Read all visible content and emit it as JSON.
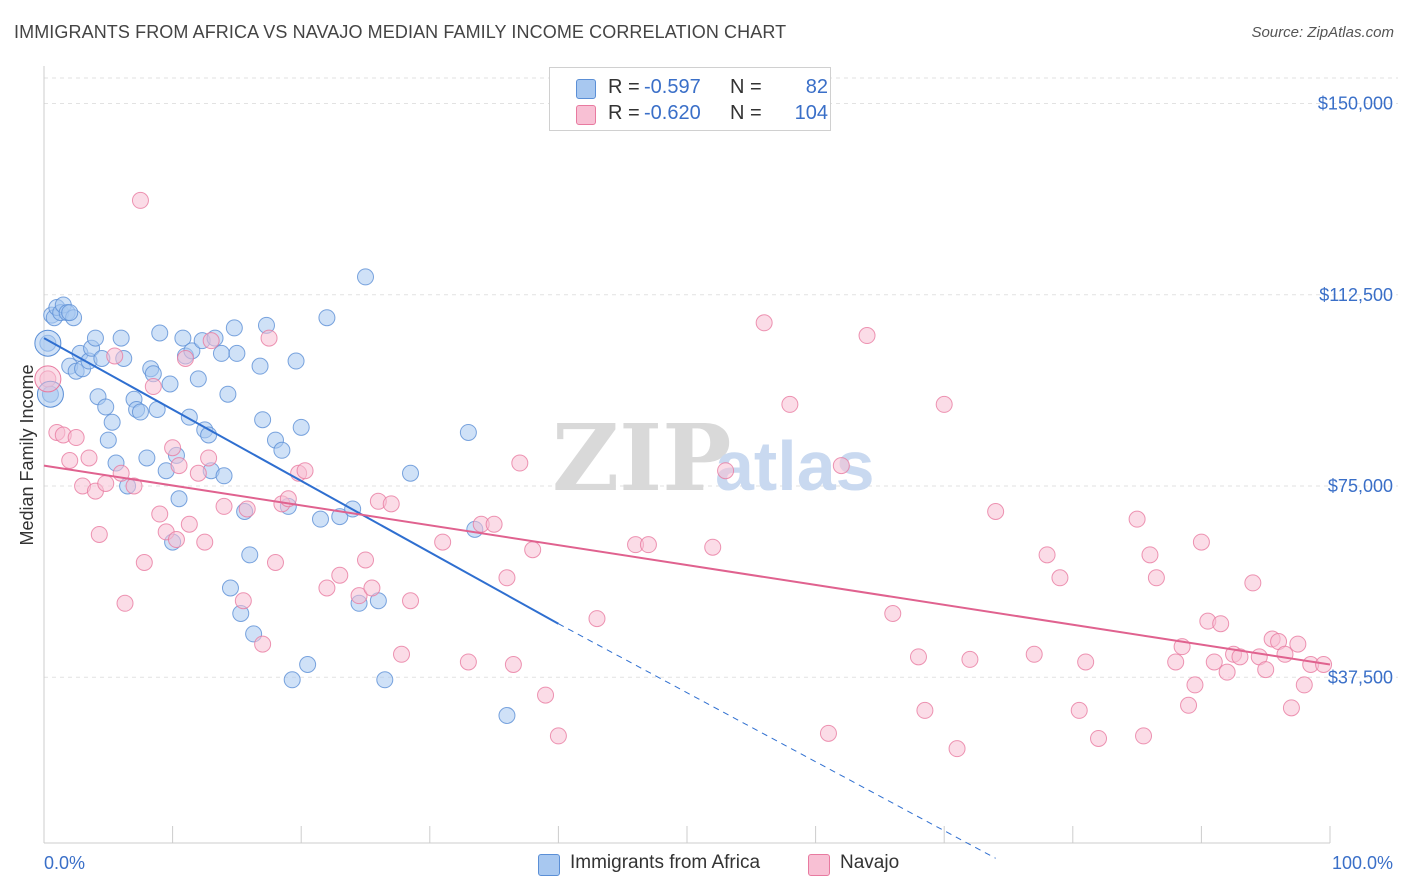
{
  "title": "IMMIGRANTS FROM AFRICA VS NAVAJO MEDIAN FAMILY INCOME CORRELATION CHART",
  "source": "Source: ZipAtlas.com",
  "watermark": {
    "zip": "ZIP",
    "atlas": "atlas"
  },
  "legend": {
    "r_label": "R =",
    "n_label": "N =",
    "rows": [
      {
        "r": "-0.597",
        "n": "82",
        "color": "#a8c8f0",
        "border": "#5b8fd6"
      },
      {
        "r": "-0.620",
        "n": "104",
        "color": "#f8c0d4",
        "border": "#e87aa0"
      }
    ]
  },
  "bottom_legend": [
    {
      "label": "Immigrants from Africa",
      "color": "#a8c8f0",
      "border": "#5b8fd6"
    },
    {
      "label": "Navajo",
      "color": "#f8c0d4",
      "border": "#e87aa0"
    }
  ],
  "chart_data": {
    "type": "scatter",
    "title": "IMMIGRANTS FROM AFRICA VS NAVAJO MEDIAN FAMILY INCOME CORRELATION CHART",
    "xlabel": "",
    "ylabel": "Median Family Income",
    "xlim": [
      0,
      100
    ],
    "ylim": [
      5000,
      155000
    ],
    "x_tick_labels": [
      "0.0%",
      "100.0%"
    ],
    "y_ticks": [
      37500,
      75000,
      112500,
      150000
    ],
    "y_tick_labels": [
      "$37,500",
      "$75,000",
      "$112,500",
      "$150,000"
    ],
    "grid": true,
    "legend_position": "top-center",
    "series": [
      {
        "name": "Immigrants from Africa",
        "color": "#5b8fd6",
        "fill": "#a8c8f0",
        "r": -0.597,
        "n": 82,
        "trend": {
          "x": [
            0,
            40
          ],
          "y": [
            104000,
            48000
          ],
          "dashed_to": [
            74,
            2000
          ]
        },
        "points": [
          [
            0.3,
            103
          ],
          [
            0.5,
            93
          ],
          [
            0.6,
            108.5
          ],
          [
            0.8,
            108
          ],
          [
            1,
            110
          ],
          [
            1.3,
            109
          ],
          [
            1.5,
            110.5
          ],
          [
            1.8,
            109
          ],
          [
            2,
            98.5
          ],
          [
            2.3,
            108
          ],
          [
            2.5,
            97.5
          ],
          [
            2.8,
            101
          ],
          [
            3,
            98
          ],
          [
            3.5,
            99.5
          ],
          [
            3.7,
            102
          ],
          [
            4,
            104
          ],
          [
            4.2,
            92.5
          ],
          [
            4.5,
            100
          ],
          [
            4.8,
            90.5
          ],
          [
            5,
            84
          ],
          [
            5.3,
            87.5
          ],
          [
            5.6,
            79.5
          ],
          [
            6,
            104
          ],
          [
            6.2,
            100
          ],
          [
            6.5,
            75
          ],
          [
            7,
            92
          ],
          [
            7.2,
            90
          ],
          [
            7.5,
            89.5
          ],
          [
            8,
            80.5
          ],
          [
            8.3,
            98
          ],
          [
            8.5,
            97
          ],
          [
            8.8,
            90
          ],
          [
            9,
            105
          ],
          [
            9.5,
            78
          ],
          [
            9.8,
            95
          ],
          [
            10,
            64
          ],
          [
            10.3,
            81
          ],
          [
            10.5,
            72.5
          ],
          [
            10.8,
            104
          ],
          [
            11,
            100.5
          ],
          [
            11.3,
            88.5
          ],
          [
            11.5,
            101.5
          ],
          [
            12,
            96
          ],
          [
            12.3,
            103.5
          ],
          [
            12.5,
            86
          ],
          [
            12.8,
            85
          ],
          [
            13,
            78
          ],
          [
            13.3,
            104
          ],
          [
            13.8,
            101
          ],
          [
            14,
            77
          ],
          [
            14.3,
            93
          ],
          [
            14.5,
            55
          ],
          [
            14.8,
            106
          ],
          [
            15,
            101
          ],
          [
            15.3,
            50
          ],
          [
            15.6,
            70
          ],
          [
            16,
            61.5
          ],
          [
            16.3,
            46
          ],
          [
            16.8,
            98.5
          ],
          [
            17,
            88
          ],
          [
            17.3,
            106.5
          ],
          [
            18,
            84
          ],
          [
            18.5,
            82
          ],
          [
            19,
            71
          ],
          [
            19.3,
            37
          ],
          [
            19.6,
            99.5
          ],
          [
            20,
            86.5
          ],
          [
            20.5,
            40
          ],
          [
            21.5,
            68.5
          ],
          [
            22,
            108
          ],
          [
            23,
            69
          ],
          [
            24,
            70.5
          ],
          [
            24.5,
            52
          ],
          [
            25,
            116
          ],
          [
            26,
            52.5
          ],
          [
            26.5,
            37
          ],
          [
            28.5,
            77.5
          ],
          [
            33,
            85.5
          ],
          [
            33.5,
            66.5
          ],
          [
            36,
            30
          ],
          [
            2,
            109
          ]
        ]
      },
      {
        "name": "Navajo",
        "color": "#e87aa0",
        "fill": "#f8c0d4",
        "r": -0.62,
        "n": 104,
        "trend": {
          "x": [
            0,
            100
          ],
          "y": [
            79000,
            40000
          ]
        },
        "points": [
          [
            0.3,
            96
          ],
          [
            1,
            85.5
          ],
          [
            1.5,
            85
          ],
          [
            2,
            80
          ],
          [
            2.5,
            84.5
          ],
          [
            3,
            75
          ],
          [
            3.5,
            80.5
          ],
          [
            4,
            74
          ],
          [
            4.3,
            65.5
          ],
          [
            4.8,
            75.5
          ],
          [
            5.5,
            100.5
          ],
          [
            6,
            77.5
          ],
          [
            6.3,
            52
          ],
          [
            7,
            75
          ],
          [
            7.5,
            131
          ],
          [
            7.8,
            60
          ],
          [
            8.5,
            94.5
          ],
          [
            9,
            69.5
          ],
          [
            9.5,
            66
          ],
          [
            10,
            82.5
          ],
          [
            10.3,
            64.5
          ],
          [
            10.5,
            79
          ],
          [
            11,
            100
          ],
          [
            11.3,
            67.5
          ],
          [
            12,
            77.5
          ],
          [
            12.5,
            64
          ],
          [
            12.8,
            80.5
          ],
          [
            13,
            103.5
          ],
          [
            14,
            71
          ],
          [
            15.5,
            52.5
          ],
          [
            15.8,
            70.5
          ],
          [
            17,
            44
          ],
          [
            17.5,
            104
          ],
          [
            18,
            60
          ],
          [
            18.5,
            71.5
          ],
          [
            19,
            72.5
          ],
          [
            19.8,
            77.5
          ],
          [
            20.3,
            78
          ],
          [
            22,
            55
          ],
          [
            23,
            57.5
          ],
          [
            24.5,
            53.5
          ],
          [
            25,
            60.5
          ],
          [
            25.5,
            55
          ],
          [
            26,
            72
          ],
          [
            27,
            71.5
          ],
          [
            27.8,
            42
          ],
          [
            28.5,
            52.5
          ],
          [
            31,
            64
          ],
          [
            33,
            40.5
          ],
          [
            34,
            67.5
          ],
          [
            35,
            67.5
          ],
          [
            36,
            57
          ],
          [
            36.5,
            40
          ],
          [
            37,
            79.5
          ],
          [
            38,
            62.5
          ],
          [
            39,
            34
          ],
          [
            40,
            26
          ],
          [
            43,
            49
          ],
          [
            46,
            63.5
          ],
          [
            47,
            63.5
          ],
          [
            52,
            63
          ],
          [
            53,
            78
          ],
          [
            56,
            107
          ],
          [
            58,
            91
          ],
          [
            61,
            26.5
          ],
          [
            62,
            79
          ],
          [
            64,
            104.5
          ],
          [
            66,
            50
          ],
          [
            68,
            41.5
          ],
          [
            68.5,
            31
          ],
          [
            70,
            91
          ],
          [
            71,
            23.5
          ],
          [
            72,
            41
          ],
          [
            74,
            70
          ],
          [
            77,
            42
          ],
          [
            78,
            61.5
          ],
          [
            79,
            57
          ],
          [
            80.5,
            31
          ],
          [
            81,
            40.5
          ],
          [
            82,
            25.5
          ],
          [
            85,
            68.5
          ],
          [
            85.5,
            26
          ],
          [
            86,
            61.5
          ],
          [
            86.5,
            57
          ],
          [
            88,
            40.5
          ],
          [
            88.5,
            43.5
          ],
          [
            89,
            32
          ],
          [
            89.5,
            36
          ],
          [
            90,
            64
          ],
          [
            90.5,
            48.5
          ],
          [
            91,
            40.5
          ],
          [
            91.5,
            48
          ],
          [
            92,
            38.5
          ],
          [
            92.5,
            42
          ],
          [
            93,
            41.5
          ],
          [
            94,
            56
          ],
          [
            94.5,
            41.5
          ],
          [
            95,
            39
          ],
          [
            95.5,
            45
          ],
          [
            96,
            44.5
          ],
          [
            96.5,
            42
          ],
          [
            97,
            31.5
          ],
          [
            97.5,
            44
          ],
          [
            98,
            36
          ],
          [
            98.5,
            40
          ],
          [
            99.5,
            40
          ]
        ]
      }
    ]
  }
}
